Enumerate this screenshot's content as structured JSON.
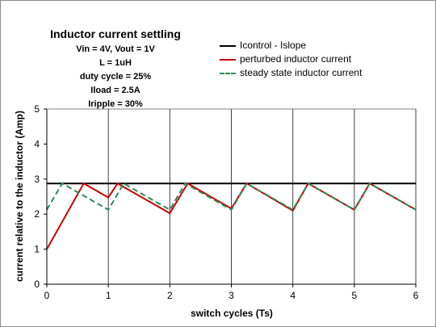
{
  "chart_data": {
    "type": "line",
    "title": "Inductor current settling",
    "subtitle_lines": [
      "Vin = 4V, Vout = 1V",
      "L = 1uH",
      "duty cycle = 25%",
      "Iload = 2.5A",
      "Iripple = 30%"
    ],
    "xlabel": "switch cycles (Ts)",
    "ylabel": "current relative to the inductor (Amp)",
    "xlim": [
      0,
      6
    ],
    "ylim": [
      0,
      5
    ],
    "x_ticks": [
      0,
      1,
      2,
      3,
      4,
      5,
      6
    ],
    "y_ticks": [
      0,
      1,
      2,
      3,
      4,
      5
    ],
    "grid": "vertical",
    "legend_position": "top-right",
    "series": [
      {
        "name": "Icontrol - Islope",
        "color": "#000000",
        "style": "solid",
        "x": [
          0,
          6
        ],
        "y": [
          2.875,
          2.875
        ]
      },
      {
        "name": "perturbed inductor current",
        "color": "#cc0000",
        "style": "solid",
        "x": [
          0,
          0.6,
          1.0,
          1.15,
          2.0,
          2.29,
          3.0,
          3.25,
          4.0,
          4.25,
          5.0,
          5.25,
          6.0
        ],
        "y": [
          1.0,
          2.875,
          2.475,
          2.875,
          2.025,
          2.875,
          2.16,
          2.875,
          2.1,
          2.875,
          2.125,
          2.875,
          2.125
        ]
      },
      {
        "name": "steady state inductor current",
        "color": "#2e8b57",
        "style": "dashed",
        "x": [
          0,
          0.25,
          1.0,
          1.25,
          2.0,
          2.25,
          3.0,
          3.25,
          4.0,
          4.25,
          5.0,
          5.25,
          6.0
        ],
        "y": [
          2.125,
          2.875,
          2.125,
          2.875,
          2.125,
          2.875,
          2.125,
          2.875,
          2.125,
          2.875,
          2.125,
          2.875,
          2.125
        ]
      }
    ]
  }
}
